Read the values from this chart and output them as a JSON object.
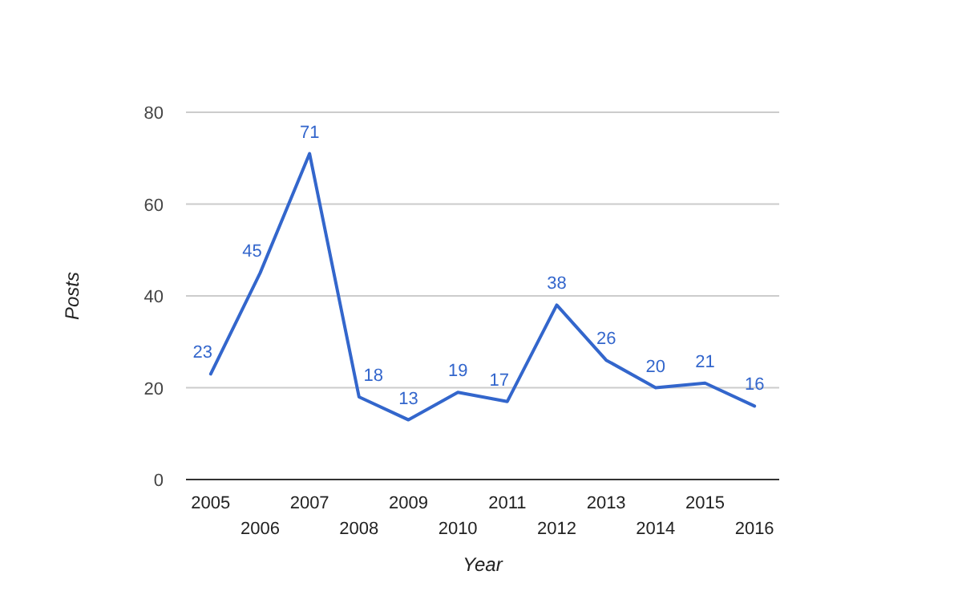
{
  "chart_data": {
    "type": "line",
    "xlabel": "Year",
    "ylabel": "Posts",
    "categories": [
      "2005",
      "2006",
      "2007",
      "2008",
      "2009",
      "2010",
      "2011",
      "2012",
      "2013",
      "2014",
      "2015",
      "2016"
    ],
    "series": [
      {
        "color": "#3366cc",
        "values": [
          23,
          45,
          71,
          18,
          13,
          19,
          17,
          38,
          26,
          20,
          21,
          16
        ]
      }
    ],
    "ylim": [
      0,
      80
    ],
    "yticks": [
      0,
      20,
      40,
      60,
      80
    ],
    "grid": "y",
    "data_labels": true,
    "marker": "none",
    "line_style": "solid"
  }
}
